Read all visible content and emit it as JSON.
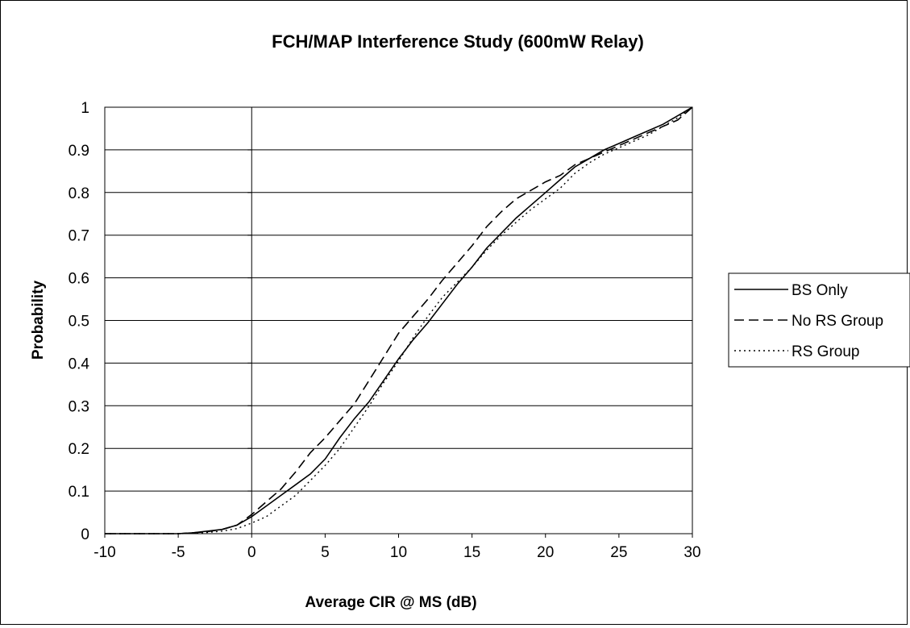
{
  "chart_data": {
    "type": "line",
    "title": "FCH/MAP Interference Study (600mW Relay)",
    "xlabel": "Average CIR @ MS (dB)",
    "ylabel": "Probability",
    "xlim": [
      -10,
      30
    ],
    "ylim": [
      0,
      1
    ],
    "x_ticks": [
      "-10",
      "-5",
      "0",
      "5",
      "10",
      "15",
      "20",
      "25",
      "30"
    ],
    "y_ticks": [
      "0",
      "0.1",
      "0.2",
      "0.3",
      "0.4",
      "0.5",
      "0.6",
      "0.7",
      "0.8",
      "0.9",
      "1"
    ],
    "grid": "horizontal",
    "legend_position": "right",
    "series": [
      {
        "name": "BS Only",
        "dash": "solid",
        "color": "#000000",
        "points": [
          [
            -10,
            0
          ],
          [
            -5,
            0
          ],
          [
            -4,
            0.002
          ],
          [
            -3,
            0.006
          ],
          [
            -2,
            0.01
          ],
          [
            -1,
            0.02
          ],
          [
            0,
            0.04
          ],
          [
            1,
            0.065
          ],
          [
            2,
            0.09
          ],
          [
            3,
            0.115
          ],
          [
            4,
            0.14
          ],
          [
            5,
            0.175
          ],
          [
            6,
            0.225
          ],
          [
            7,
            0.27
          ],
          [
            8,
            0.31
          ],
          [
            9,
            0.36
          ],
          [
            10,
            0.41
          ],
          [
            11,
            0.455
          ],
          [
            12,
            0.495
          ],
          [
            13,
            0.54
          ],
          [
            14,
            0.585
          ],
          [
            15,
            0.625
          ],
          [
            16,
            0.67
          ],
          [
            17,
            0.705
          ],
          [
            18,
            0.74
          ],
          [
            19,
            0.77
          ],
          [
            20,
            0.8
          ],
          [
            21,
            0.83
          ],
          [
            22,
            0.86
          ],
          [
            23,
            0.88
          ],
          [
            24,
            0.9
          ],
          [
            25,
            0.915
          ],
          [
            26,
            0.93
          ],
          [
            27,
            0.945
          ],
          [
            28,
            0.96
          ],
          [
            29,
            0.98
          ],
          [
            30,
            1
          ]
        ]
      },
      {
        "name": "No RS Group",
        "dash": "dash",
        "color": "#000000",
        "points": [
          [
            -10,
            0
          ],
          [
            -5,
            0
          ],
          [
            -4,
            0.002
          ],
          [
            -3,
            0.005
          ],
          [
            -2,
            0.01
          ],
          [
            -1,
            0.02
          ],
          [
            0,
            0.045
          ],
          [
            1,
            0.075
          ],
          [
            2,
            0.105
          ],
          [
            3,
            0.145
          ],
          [
            4,
            0.19
          ],
          [
            5,
            0.225
          ],
          [
            6,
            0.265
          ],
          [
            7,
            0.305
          ],
          [
            8,
            0.36
          ],
          [
            9,
            0.415
          ],
          [
            10,
            0.47
          ],
          [
            11,
            0.51
          ],
          [
            12,
            0.55
          ],
          [
            13,
            0.595
          ],
          [
            14,
            0.635
          ],
          [
            15,
            0.675
          ],
          [
            16,
            0.72
          ],
          [
            17,
            0.755
          ],
          [
            18,
            0.785
          ],
          [
            19,
            0.805
          ],
          [
            20,
            0.825
          ],
          [
            21,
            0.84
          ],
          [
            22,
            0.865
          ],
          [
            23,
            0.88
          ],
          [
            24,
            0.895
          ],
          [
            25,
            0.91
          ],
          [
            26,
            0.925
          ],
          [
            27,
            0.94
          ],
          [
            28,
            0.955
          ],
          [
            29,
            0.97
          ],
          [
            30,
            1
          ]
        ]
      },
      {
        "name": "RS Group",
        "dash": "dot",
        "color": "#000000",
        "points": [
          [
            -10,
            0
          ],
          [
            -5,
            0
          ],
          [
            -4,
            0.001
          ],
          [
            -3,
            0.003
          ],
          [
            -2,
            0.006
          ],
          [
            -1,
            0.012
          ],
          [
            0,
            0.025
          ],
          [
            1,
            0.04
          ],
          [
            2,
            0.065
          ],
          [
            3,
            0.09
          ],
          [
            4,
            0.125
          ],
          [
            5,
            0.16
          ],
          [
            6,
            0.2
          ],
          [
            7,
            0.25
          ],
          [
            8,
            0.3
          ],
          [
            9,
            0.355
          ],
          [
            10,
            0.405
          ],
          [
            11,
            0.46
          ],
          [
            12,
            0.51
          ],
          [
            13,
            0.555
          ],
          [
            14,
            0.59
          ],
          [
            15,
            0.625
          ],
          [
            16,
            0.665
          ],
          [
            17,
            0.7
          ],
          [
            18,
            0.73
          ],
          [
            19,
            0.76
          ],
          [
            20,
            0.785
          ],
          [
            21,
            0.81
          ],
          [
            22,
            0.845
          ],
          [
            23,
            0.87
          ],
          [
            24,
            0.89
          ],
          [
            25,
            0.905
          ],
          [
            26,
            0.92
          ],
          [
            27,
            0.935
          ],
          [
            28,
            0.955
          ],
          [
            29,
            0.975
          ],
          [
            30,
            1
          ]
        ]
      }
    ]
  }
}
